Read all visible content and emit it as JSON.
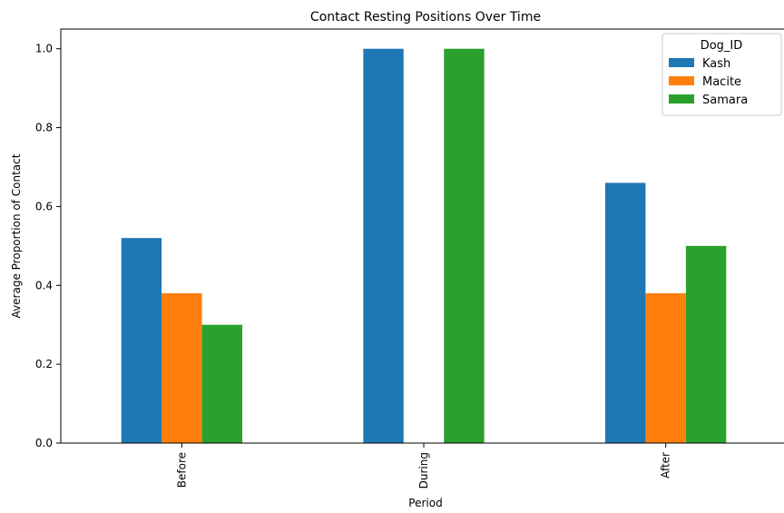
{
  "chart_data": {
    "type": "bar",
    "title": "Contact Resting Positions Over Time",
    "xlabel": "Period",
    "ylabel": "Average Proportion of Contact",
    "categories": [
      "Before",
      "During",
      "After"
    ],
    "series": [
      {
        "name": "Kash",
        "values": [
          0.52,
          1.0,
          0.66
        ],
        "color": "#1f77b4"
      },
      {
        "name": "Macite",
        "values": [
          0.38,
          0.0,
          0.38
        ],
        "color": "#ff7f0e"
      },
      {
        "name": "Samara",
        "values": [
          0.3,
          1.0,
          0.5
        ],
        "color": "#2ca02c"
      }
    ],
    "ylim": [
      0,
      1.05
    ],
    "yticks": [
      "0.0",
      "0.2",
      "0.4",
      "0.6",
      "0.8",
      "1.0"
    ],
    "legend": {
      "title": "Dog_ID",
      "placement": "top-right"
    },
    "grid": false
  }
}
